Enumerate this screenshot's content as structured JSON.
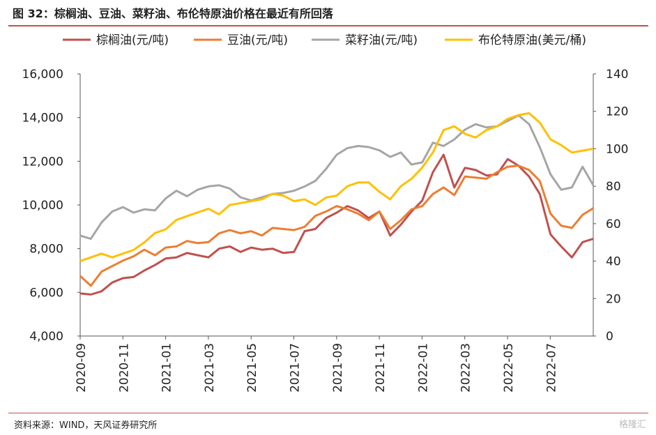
{
  "figure": {
    "title": "图 32：棕榈油、豆油、菜籽油、布伦特原油价格在最近有所回落",
    "source": "资料来源：WIND，天风证券研究所",
    "watermark": "格隆汇"
  },
  "chart_data": {
    "type": "line",
    "title": "",
    "xlabel": "",
    "ylabel": "",
    "y_left_lim": [
      4000,
      16000
    ],
    "y_left_ticks": [
      "4,000",
      "6,000",
      "8,000",
      "10,000",
      "12,000",
      "14,000",
      "16,000"
    ],
    "y_right_lim": [
      0,
      140
    ],
    "y_right_ticks": [
      "0",
      "20",
      "40",
      "60",
      "80",
      "100",
      "120",
      "140"
    ],
    "x_ticks": [
      "2020-09",
      "2020-11",
      "2021-01",
      "2021-03",
      "2021-05",
      "2021-07",
      "2021-09",
      "2021-11",
      "2022-01",
      "2022-03",
      "2022-05",
      "2022-07"
    ],
    "grid": false,
    "legend_position": "top",
    "series": [
      {
        "name": "棕榈油(元/吨)",
        "axis": "left",
        "color": "#c0504d",
        "values": [
          5950,
          5900,
          6050,
          6450,
          6650,
          6700,
          7000,
          7250,
          7550,
          7600,
          7800,
          7700,
          7600,
          8000,
          8100,
          7850,
          8050,
          7950,
          8000,
          7800,
          7850,
          8800,
          8900,
          9400,
          9650,
          9950,
          9750,
          9400,
          9700,
          8600,
          9100,
          9700,
          10200,
          11500,
          12300,
          10800,
          11700,
          11600,
          11350,
          11400,
          12100,
          11800,
          11300,
          10500,
          8650,
          8100,
          7600,
          8300,
          8450
        ]
      },
      {
        "name": "豆油(元/吨)",
        "axis": "left",
        "color": "#ed7d31",
        "values": [
          6750,
          6300,
          6950,
          7200,
          7450,
          7650,
          7950,
          7700,
          8050,
          8100,
          8350,
          8250,
          8300,
          8700,
          8850,
          8700,
          8800,
          8600,
          8950,
          8900,
          8850,
          9000,
          9500,
          9700,
          9950,
          9800,
          9600,
          9300,
          9700,
          8900,
          9300,
          9800,
          9950,
          10500,
          10800,
          10450,
          11300,
          11250,
          11200,
          11500,
          11750,
          11800,
          11600,
          11100,
          9600,
          9050,
          8950,
          9550,
          9850
        ]
      },
      {
        "name": "菜籽油(元/吨)",
        "axis": "left",
        "color": "#a5a5a5",
        "values": [
          8600,
          8450,
          9200,
          9700,
          9900,
          9650,
          9800,
          9750,
          10300,
          10650,
          10400,
          10700,
          10850,
          10900,
          10750,
          10350,
          10200,
          10350,
          10500,
          10550,
          10650,
          10850,
          11100,
          11650,
          12300,
          12600,
          12700,
          12650,
          12500,
          12200,
          12400,
          11850,
          11950,
          12850,
          12700,
          13000,
          13450,
          13700,
          13550,
          13600,
          13850,
          14100,
          13700,
          12650,
          11400,
          10700,
          10800,
          11750,
          10900
        ]
      },
      {
        "name": "布伦特原油(美元/桶)",
        "axis": "right",
        "color": "#ffc000",
        "values": [
          40,
          42,
          44,
          42,
          44,
          46,
          50,
          55,
          57,
          62,
          64,
          66,
          68,
          65,
          70,
          71,
          72,
          73,
          76,
          75,
          72,
          73,
          70,
          74,
          75,
          80,
          82,
          82,
          77,
          73,
          80,
          84,
          90,
          98,
          110,
          112,
          108,
          106,
          110,
          112,
          116,
          118,
          119,
          114,
          105,
          102,
          98,
          99,
          100
        ]
      }
    ]
  }
}
